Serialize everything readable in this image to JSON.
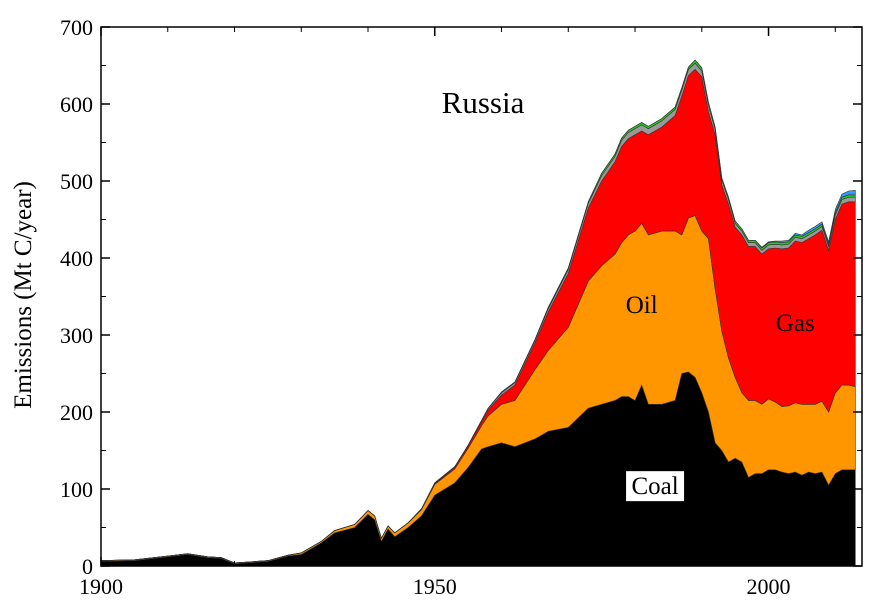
{
  "chart_data": {
    "type": "area",
    "stacked": true,
    "title": "Russia",
    "xlabel": "",
    "ylabel": "Emissions (Mt C/year)",
    "xlim": [
      1900,
      2014
    ],
    "ylim": [
      0,
      700
    ],
    "xticks": [
      1900,
      1950,
      2000
    ],
    "yticks": [
      0,
      100,
      200,
      300,
      400,
      500,
      600,
      700
    ],
    "grid": false,
    "x": [
      1900,
      1905,
      1908,
      1910,
      1913,
      1916,
      1918,
      1920,
      1925,
      1928,
      1930,
      1933,
      1935,
      1938,
      1940,
      1941,
      1942,
      1943,
      1944,
      1946,
      1948,
      1950,
      1953,
      1955,
      1957,
      1958,
      1960,
      1962,
      1965,
      1967,
      1970,
      1973,
      1975,
      1977,
      1978,
      1979,
      1980,
      1981,
      1982,
      1984,
      1986,
      1987,
      1988,
      1989,
      1990,
      1991,
      1992,
      1993,
      1994,
      1995,
      1996,
      1997,
      1998,
      1999,
      2000,
      2001,
      2002,
      2003,
      2004,
      2005,
      2006,
      2007,
      2008,
      2009,
      2010,
      2011,
      2012,
      2013
    ],
    "series": [
      {
        "name": "Coal",
        "color": "#000000",
        "label_text": "Coal",
        "values": [
          6,
          7,
          10,
          12,
          15,
          11,
          10,
          3,
          6,
          13,
          15,
          30,
          43,
          50,
          67,
          60,
          32,
          48,
          38,
          50,
          65,
          92,
          108,
          128,
          152,
          155,
          160,
          155,
          165,
          175,
          180,
          205,
          210,
          215,
          220,
          220,
          215,
          235,
          210,
          210,
          215,
          250,
          252,
          245,
          225,
          200,
          160,
          150,
          135,
          140,
          135,
          115,
          120,
          120,
          125,
          125,
          122,
          120,
          122,
          118,
          122,
          120,
          122,
          105,
          120,
          125,
          125,
          125
        ]
      },
      {
        "name": "Oil",
        "color": "#ff9600",
        "label_text": "Oil",
        "values": [
          1,
          1,
          1,
          1,
          1,
          1,
          1,
          1,
          1,
          1,
          2,
          2,
          3,
          4,
          5,
          5,
          4,
          4,
          5,
          6,
          8,
          14,
          18,
          25,
          30,
          40,
          50,
          60,
          90,
          105,
          130,
          165,
          180,
          190,
          200,
          210,
          220,
          210,
          220,
          225,
          220,
          180,
          200,
          210,
          210,
          225,
          200,
          155,
          135,
          105,
          90,
          100,
          95,
          90,
          92,
          88,
          85,
          88,
          90,
          92,
          88,
          90,
          92,
          95,
          105,
          110,
          110,
          108
        ]
      },
      {
        "name": "Gas",
        "color": "#ff0000",
        "label_text": "Gas",
        "values": [
          0,
          0,
          0,
          0,
          0,
          0,
          0,
          0,
          0,
          0,
          0,
          0,
          0,
          0,
          0,
          0,
          0,
          0,
          0,
          0,
          1,
          1,
          2,
          3,
          5,
          8,
          12,
          20,
          35,
          50,
          70,
          95,
          110,
          120,
          125,
          125,
          125,
          120,
          130,
          135,
          150,
          180,
          185,
          190,
          200,
          165,
          200,
          190,
          200,
          195,
          205,
          200,
          200,
          195,
          195,
          200,
          205,
          205,
          210,
          210,
          215,
          220,
          222,
          210,
          225,
          235,
          238,
          240
        ]
      },
      {
        "name": "",
        "color": "#999999",
        "values": [
          0,
          0,
          0,
          0,
          0,
          0,
          0,
          0,
          0,
          0,
          0,
          0,
          0,
          0,
          0,
          0,
          0,
          0,
          0,
          0,
          0,
          1,
          1,
          1,
          2,
          2,
          3,
          3,
          3,
          4,
          5,
          6,
          7,
          7,
          8,
          8,
          8,
          8,
          8,
          8,
          8,
          8,
          8,
          8,
          8,
          8,
          7,
          6,
          6,
          5,
          5,
          5,
          5,
          5,
          5,
          5,
          5,
          5,
          5,
          5,
          5,
          5,
          5,
          5,
          6,
          6,
          6,
          6
        ]
      },
      {
        "name": "",
        "color": "#22cc22",
        "values": [
          0,
          0,
          0,
          0,
          0,
          0,
          0,
          0,
          0,
          0,
          0,
          0,
          0,
          0,
          0,
          0,
          0,
          0,
          0,
          0,
          0,
          0,
          0,
          0,
          0,
          0,
          1,
          1,
          1,
          2,
          2,
          2,
          3,
          3,
          3,
          3,
          3,
          3,
          3,
          3,
          3,
          3,
          3,
          4,
          4,
          4,
          3,
          3,
          3,
          3,
          3,
          3,
          3,
          3,
          3,
          3,
          3,
          3,
          3,
          3,
          3,
          3,
          3,
          3,
          3,
          3,
          3,
          3
        ]
      },
      {
        "name": "",
        "color": "#3399ff",
        "values": [
          0,
          0,
          0,
          0,
          0,
          0,
          0,
          0,
          0,
          0,
          0,
          0,
          0,
          0,
          0,
          0,
          0,
          0,
          0,
          0,
          0,
          0,
          0,
          0,
          0,
          0,
          0,
          0,
          0,
          0,
          0,
          0,
          0,
          0,
          0,
          0,
          0,
          0,
          0,
          0,
          0,
          0,
          0,
          0,
          0,
          0,
          0,
          0,
          0,
          0,
          0,
          0,
          0,
          1,
          1,
          1,
          2,
          2,
          2,
          2,
          3,
          3,
          3,
          3,
          4,
          4,
          5,
          6
        ]
      }
    ]
  }
}
